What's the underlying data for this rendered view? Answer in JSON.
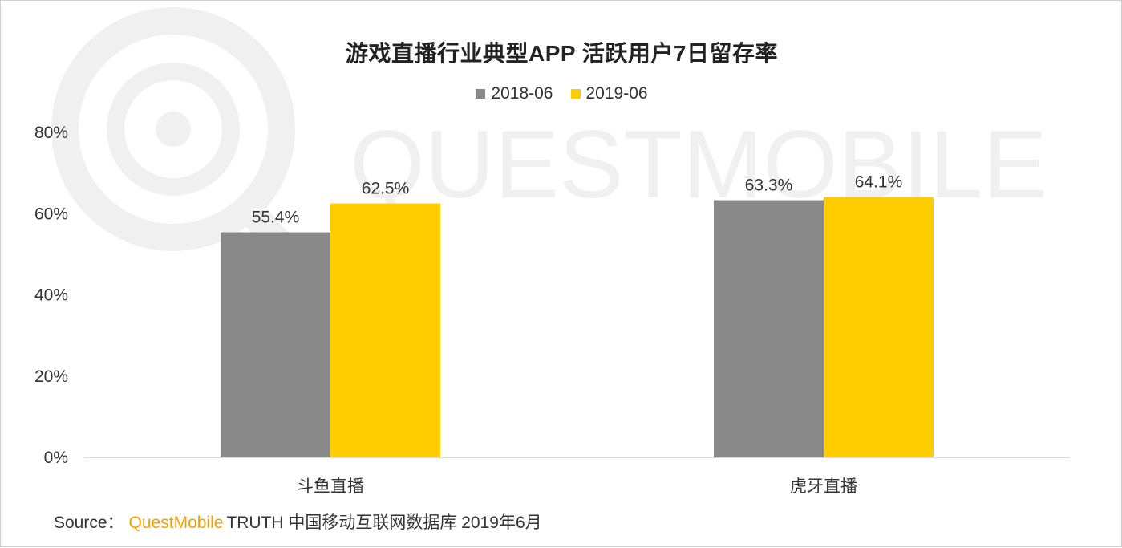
{
  "colors": {
    "series_2018": "#898989",
    "series_2019": "#ffcc00",
    "brand": "#f5a000",
    "axis": "#d9d9d9",
    "watermark": "#f0f0f0"
  },
  "watermark_text": "QUESTMOBILE",
  "footer": {
    "source_label": "Source：",
    "brand": "QuestMobile",
    "text": "TRUTH 中国移动互联网数据库 2019年6月"
  },
  "chart_data": {
    "type": "bar",
    "title": "游戏直播行业典型APP 活跃用户7日留存率",
    "categories": [
      "斗鱼直播",
      "虎牙直播"
    ],
    "series": [
      {
        "name": "2018-06",
        "values": [
          55.4,
          63.3
        ],
        "labels": [
          "55.4%",
          "63.3%"
        ],
        "color": "#898989"
      },
      {
        "name": "2019-06",
        "values": [
          62.5,
          64.1
        ],
        "labels": [
          "62.5%",
          "64.1%"
        ],
        "color": "#ffcc00"
      }
    ],
    "ylim": [
      0,
      80
    ],
    "yticks": [
      0,
      20,
      40,
      60,
      80
    ],
    "ytick_labels": [
      "0%",
      "20%",
      "40%",
      "60%",
      "80%"
    ],
    "xlabel": "",
    "ylabel": "",
    "grid": false,
    "legend": "top-center"
  }
}
